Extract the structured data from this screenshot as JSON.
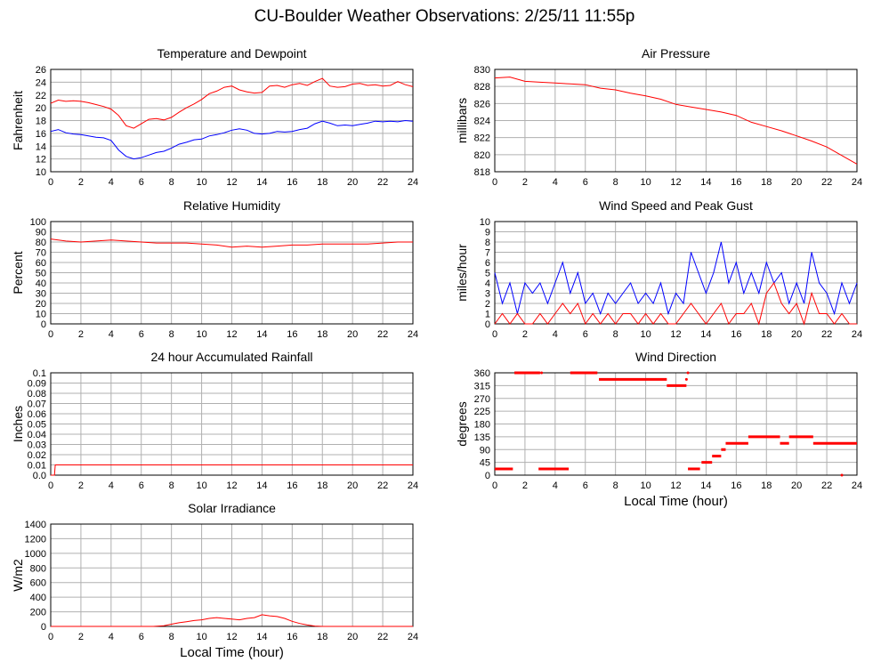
{
  "title": "CU-Boulder Weather Observations: 2/25/11 11:55p",
  "colors": {
    "red": "#ff0000",
    "blue": "#0000ff",
    "grid": "#b0b0b0"
  },
  "chart_data": [
    {
      "id": "temp",
      "type": "line",
      "title": "Temperature and Dewpoint",
      "ylabel": "Fahrenheit",
      "xlabel": "",
      "xlim": [
        0,
        24
      ],
      "ylim": [
        10,
        26
      ],
      "yticks": [
        10,
        12,
        14,
        16,
        18,
        20,
        22,
        24,
        26
      ],
      "grid": true,
      "series": [
        {
          "color": "#ff0000",
          "x": [
            0,
            0.5,
            1,
            1.5,
            2,
            2.5,
            3,
            3.5,
            4,
            4.5,
            5,
            5.5,
            6,
            6.5,
            7,
            7.5,
            8,
            8.5,
            9,
            9.5,
            10,
            10.5,
            11,
            11.5,
            12,
            12.5,
            13,
            13.5,
            14,
            14.5,
            15,
            15.5,
            16,
            16.5,
            17,
            17.5,
            18,
            18.5,
            19,
            19.5,
            20,
            20.5,
            21,
            21.5,
            22,
            22.5,
            23,
            23.5,
            24
          ],
          "y": [
            20.7,
            21.2,
            21,
            21.1,
            21,
            20.8,
            20.5,
            20.2,
            19.8,
            18.8,
            17.2,
            16.8,
            17.5,
            18.2,
            18.3,
            18.1,
            18.5,
            19.3,
            20,
            20.6,
            21.3,
            22.2,
            22.6,
            23.2,
            23.4,
            22.8,
            22.5,
            22.3,
            22.4,
            23.4,
            23.5,
            23.2,
            23.6,
            23.8,
            23.5,
            24.1,
            24.6,
            23.4,
            23.2,
            23.3,
            23.7,
            23.8,
            23.5,
            23.6,
            23.4,
            23.5,
            24.1,
            23.6,
            23.3
          ]
        },
        {
          "color": "#0000ff",
          "x": [
            0,
            0.5,
            1,
            1.5,
            2,
            2.5,
            3,
            3.5,
            4,
            4.5,
            5,
            5.5,
            6,
            6.5,
            7,
            7.5,
            8,
            8.5,
            9,
            9.5,
            10,
            10.5,
            11,
            11.5,
            12,
            12.5,
            13,
            13.5,
            14,
            14.5,
            15,
            15.5,
            16,
            16.5,
            17,
            17.5,
            18,
            18.5,
            19,
            19.5,
            20,
            20.5,
            21,
            21.5,
            22,
            22.5,
            23,
            23.5,
            24
          ],
          "y": [
            16.3,
            16.6,
            16.1,
            15.9,
            15.8,
            15.6,
            15.4,
            15.3,
            14.9,
            13.4,
            12.4,
            12,
            12.2,
            12.6,
            13,
            13.2,
            13.7,
            14.3,
            14.6,
            15,
            15.1,
            15.6,
            15.8,
            16.1,
            16.5,
            16.7,
            16.5,
            16,
            15.9,
            16,
            16.3,
            16.2,
            16.3,
            16.6,
            16.8,
            17.5,
            17.9,
            17.6,
            17.2,
            17.3,
            17.2,
            17.4,
            17.6,
            17.9,
            17.8,
            17.9,
            17.8,
            18,
            17.9
          ]
        }
      ]
    },
    {
      "id": "pressure",
      "type": "line",
      "title": "Air Pressure",
      "ylabel": "millibars",
      "xlabel": "",
      "xlim": [
        0,
        24
      ],
      "ylim": [
        818,
        830
      ],
      "yticks": [
        818,
        820,
        822,
        824,
        826,
        828,
        830
      ],
      "grid": true,
      "series": [
        {
          "color": "#ff0000",
          "x": [
            0,
            1,
            2,
            3,
            4,
            5,
            6,
            7,
            8,
            9,
            10,
            11,
            12,
            13,
            14,
            15,
            16,
            17,
            18,
            19,
            20,
            21,
            22,
            23,
            24
          ],
          "y": [
            829,
            829.1,
            828.6,
            828.5,
            828.4,
            828.3,
            828.2,
            827.8,
            827.6,
            827.2,
            826.9,
            826.5,
            825.9,
            825.6,
            825.3,
            825,
            824.6,
            823.8,
            823.3,
            822.8,
            822.2,
            821.6,
            820.9,
            819.9,
            818.9
          ]
        }
      ]
    },
    {
      "id": "humidity",
      "type": "line",
      "title": "Relative Humidity",
      "ylabel": "Percent",
      "xlabel": "",
      "xlim": [
        0,
        24
      ],
      "ylim": [
        0,
        100
      ],
      "yticks": [
        0,
        10,
        20,
        30,
        40,
        50,
        60,
        70,
        80,
        90,
        100
      ],
      "grid": true,
      "series": [
        {
          "color": "#ff0000",
          "x": [
            0,
            1,
            2,
            3,
            4,
            5,
            6,
            7,
            8,
            9,
            10,
            11,
            12,
            13,
            14,
            15,
            16,
            17,
            18,
            19,
            20,
            21,
            22,
            23,
            24
          ],
          "y": [
            83,
            81,
            80,
            81,
            82,
            81,
            80,
            79,
            79,
            79,
            78,
            77,
            75,
            76,
            75,
            76,
            77,
            77,
            78,
            78,
            78,
            78,
            79,
            80,
            80
          ]
        }
      ]
    },
    {
      "id": "wind",
      "type": "line",
      "title": "Wind Speed and Peak Gust",
      "ylabel": "miles/hour",
      "xlabel": "",
      "xlim": [
        0,
        24
      ],
      "ylim": [
        0,
        10
      ],
      "yticks": [
        0,
        1,
        2,
        3,
        4,
        5,
        6,
        7,
        8,
        9,
        10
      ],
      "grid": true,
      "series": [
        {
          "color": "#0000ff",
          "x": [
            0,
            0.5,
            1,
            1.5,
            2,
            2.5,
            3,
            3.5,
            4,
            4.5,
            5,
            5.5,
            6,
            6.5,
            7,
            7.5,
            8,
            8.5,
            9,
            9.5,
            10,
            10.5,
            11,
            11.5,
            12,
            12.5,
            13,
            13.5,
            14,
            14.5,
            15,
            15.5,
            16,
            16.5,
            17,
            17.5,
            18,
            18.5,
            19,
            19.5,
            20,
            20.5,
            21,
            21.5,
            22,
            22.5,
            23,
            23.5,
            24
          ],
          "y": [
            5,
            2,
            4,
            1,
            4,
            3,
            4,
            2,
            4,
            6,
            3,
            5,
            2,
            3,
            1,
            3,
            2,
            3,
            4,
            2,
            3,
            2,
            4,
            1,
            3,
            2,
            7,
            5,
            3,
            5,
            8,
            4,
            6,
            3,
            5,
            3,
            6,
            4,
            5,
            2,
            4,
            2,
            7,
            4,
            3,
            1,
            4,
            2,
            4
          ]
        },
        {
          "color": "#ff0000",
          "x": [
            0,
            0.5,
            1,
            1.5,
            2,
            2.5,
            3,
            3.5,
            4,
            4.5,
            5,
            5.5,
            6,
            6.5,
            7,
            7.5,
            8,
            8.5,
            9,
            9.5,
            10,
            10.5,
            11,
            11.5,
            12,
            12.5,
            13,
            13.5,
            14,
            14.5,
            15,
            15.5,
            16,
            16.5,
            17,
            17.5,
            18,
            18.5,
            19,
            19.5,
            20,
            20.5,
            21,
            21.5,
            22,
            22.5,
            23,
            23.5,
            24
          ],
          "y": [
            0,
            1,
            0,
            1,
            0,
            0,
            1,
            0,
            1,
            2,
            1,
            2,
            0,
            1,
            0,
            1,
            0,
            1,
            1,
            0,
            1,
            0,
            1,
            0,
            0,
            1,
            2,
            1,
            0,
            1,
            2,
            0,
            1,
            1,
            2,
            0,
            3,
            4,
            2,
            1,
            2,
            0,
            3,
            1,
            1,
            0,
            1,
            0,
            0
          ]
        }
      ]
    },
    {
      "id": "rain",
      "type": "line",
      "title": "24 hour Accumulated Rainfall",
      "ylabel": "Inches",
      "xlabel": "",
      "xlim": [
        0,
        24
      ],
      "ylim": [
        0,
        0.1
      ],
      "yticks": [
        "0.0",
        "0.01",
        "0.02",
        "0.03",
        "0.04",
        "0.05",
        "0.06",
        "0.07",
        "0.08",
        "0.09",
        "0.1"
      ],
      "grid": true,
      "series": [
        {
          "color": "#ff0000",
          "x": [
            0,
            0.25,
            0.3,
            24
          ],
          "y": [
            0,
            0,
            0.01,
            0.01
          ]
        }
      ]
    },
    {
      "id": "direction",
      "type": "scatter",
      "title": "Wind Direction",
      "ylabel": "degrees",
      "xlabel": "Local Time (hour)",
      "xlim": [
        0,
        24
      ],
      "ylim": [
        0,
        360
      ],
      "yticks": [
        0,
        45,
        90,
        135,
        180,
        225,
        270,
        315,
        360
      ],
      "grid": true,
      "segments": [
        {
          "x0": 0,
          "x1": 1.2,
          "y": 22
        },
        {
          "x0": 1.3,
          "x1": 3.0,
          "y": 360
        },
        {
          "x0": 2.9,
          "x1": 4.9,
          "y": 22
        },
        {
          "x0": 5.0,
          "x1": 6.8,
          "y": 360
        },
        {
          "x0": 6.9,
          "x1": 11.4,
          "y": 337
        },
        {
          "x0": 11.4,
          "x1": 12.7,
          "y": 315
        },
        {
          "x0": 12.8,
          "x1": 13.6,
          "y": 22
        },
        {
          "x0": 13.7,
          "x1": 14.4,
          "y": 45
        },
        {
          "x0": 14.4,
          "x1": 15.0,
          "y": 67
        },
        {
          "x0": 15.0,
          "x1": 15.3,
          "y": 90
        },
        {
          "x0": 15.3,
          "x1": 16.8,
          "y": 112
        },
        {
          "x0": 16.8,
          "x1": 18.9,
          "y": 135
        },
        {
          "x0": 18.9,
          "x1": 19.5,
          "y": 112
        },
        {
          "x0": 19.5,
          "x1": 21.1,
          "y": 135
        },
        {
          "x0": 21.1,
          "x1": 24,
          "y": 112
        }
      ],
      "points": [
        {
          "x": 3.1,
          "y": 360
        },
        {
          "x": 12.8,
          "y": 360
        },
        {
          "x": 12.7,
          "y": 337
        },
        {
          "x": 23.0,
          "y": 0
        }
      ]
    },
    {
      "id": "solar",
      "type": "area",
      "title": "Solar Irradiance",
      "ylabel": "W/m2",
      "xlabel": "Local Time (hour)",
      "xlim": [
        0,
        24
      ],
      "ylim": [
        0,
        1400
      ],
      "yticks": [
        0,
        200,
        400,
        600,
        800,
        1000,
        1200,
        1400
      ],
      "grid": true,
      "series": [
        {
          "color": "#ff0000",
          "x": [
            0,
            6.8,
            7.5,
            8,
            8.5,
            9,
            9.5,
            10,
            10.5,
            11,
            11.5,
            12,
            12.5,
            13,
            13.5,
            14,
            14.5,
            15,
            15.5,
            16,
            16.5,
            17,
            17.5,
            18,
            24
          ],
          "y": [
            0,
            0,
            10,
            30,
            50,
            65,
            80,
            90,
            110,
            120,
            110,
            100,
            90,
            110,
            120,
            160,
            145,
            135,
            110,
            70,
            40,
            20,
            5,
            0,
            0
          ]
        }
      ]
    }
  ],
  "xticks": [
    0,
    2,
    4,
    6,
    8,
    10,
    12,
    14,
    16,
    18,
    20,
    22,
    24
  ]
}
